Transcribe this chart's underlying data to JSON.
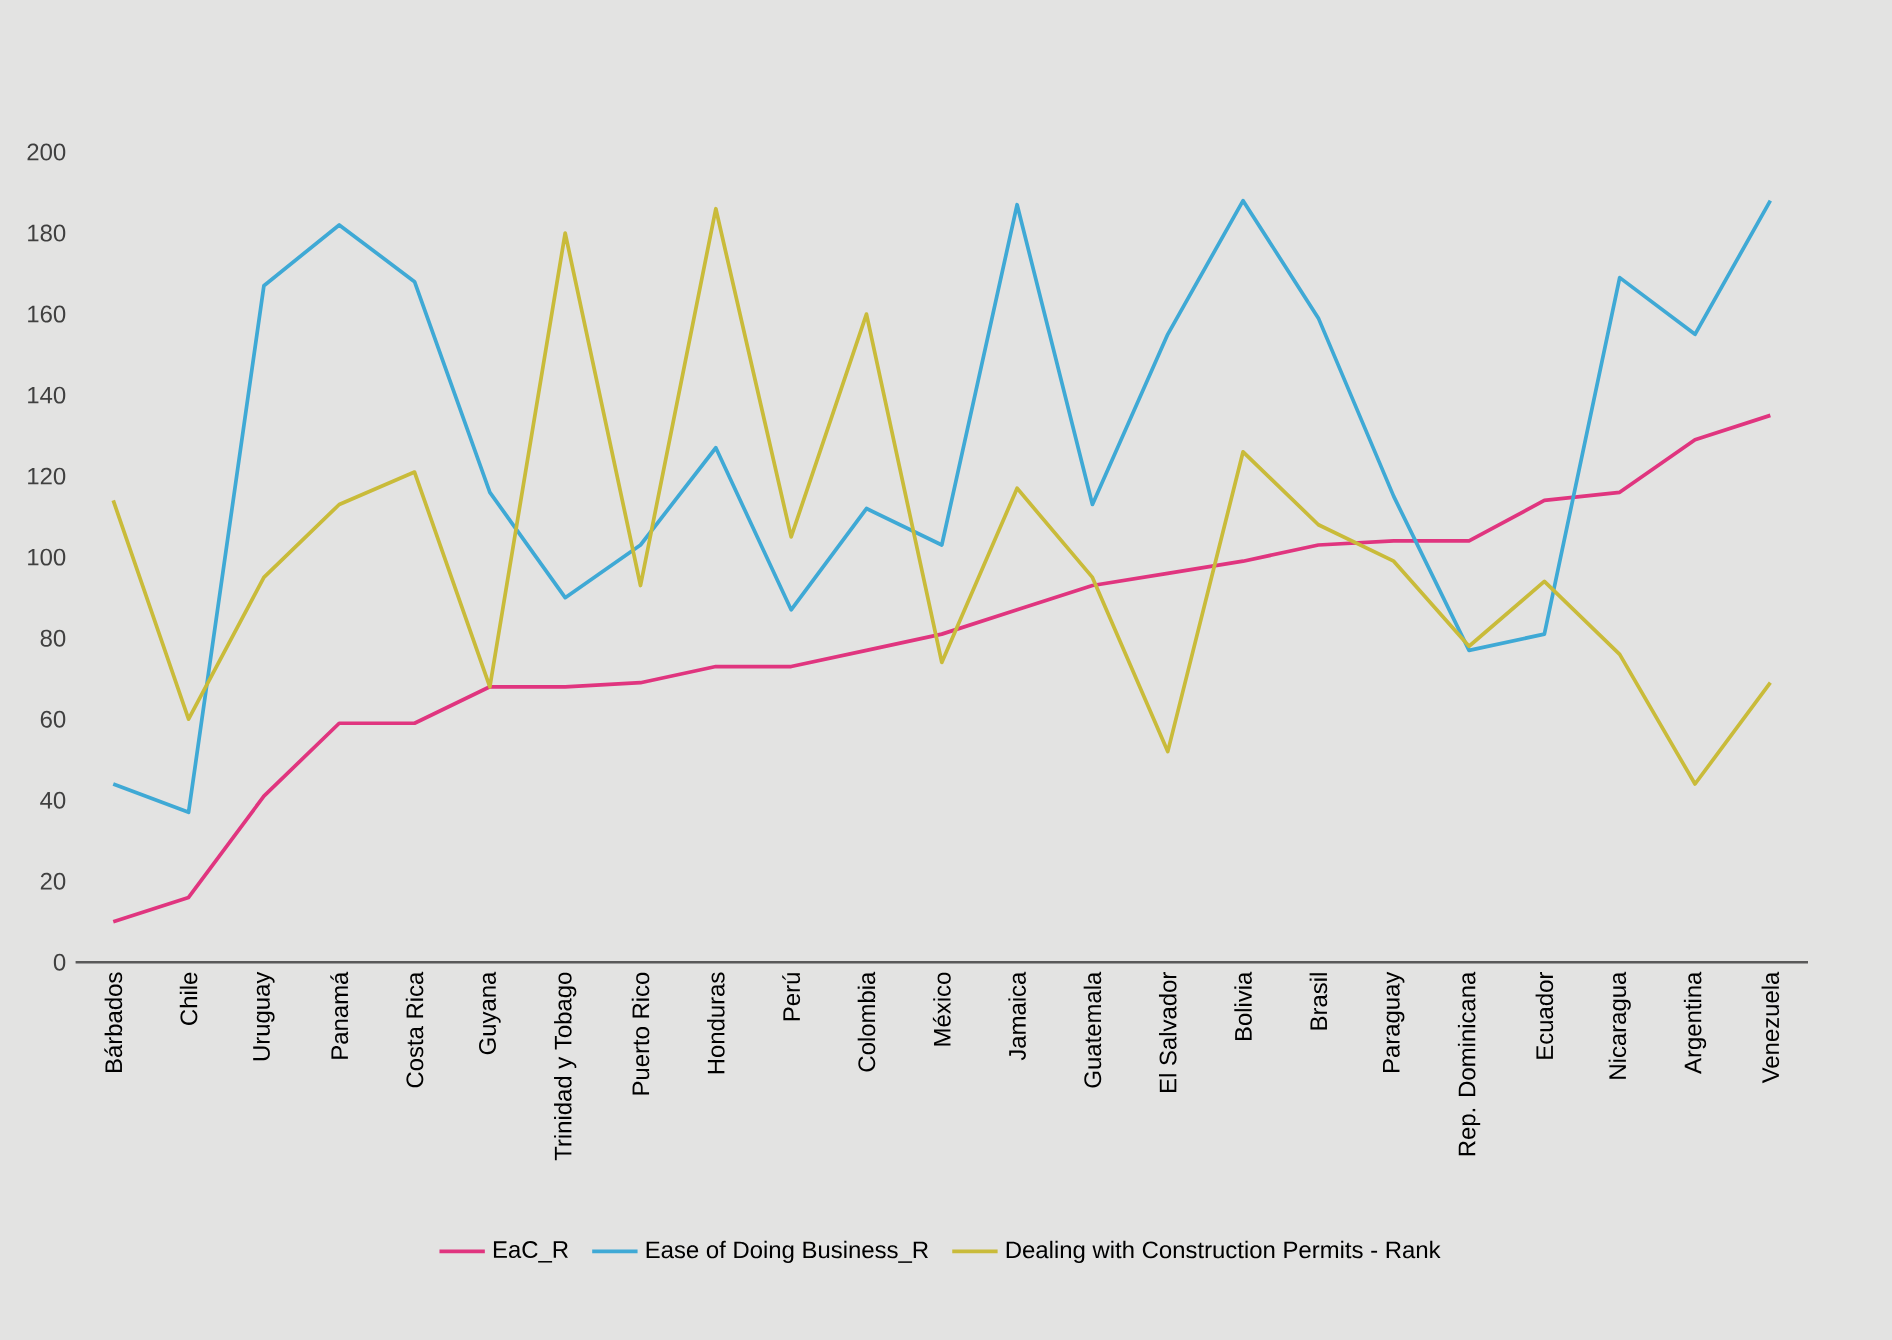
{
  "chart_data": {
    "type": "line",
    "categories": [
      "Bárbados",
      "Chile",
      "Uruguay",
      "Panamá",
      "Costa Rica",
      "Guyana",
      "Trinidad y Tobago",
      "Puerto Rico",
      "Honduras",
      "Perú",
      "Colombia",
      "México",
      "Jamaica",
      "Guatemala",
      "El Salvador",
      "Bolivia",
      "Brasil",
      "Paraguay",
      "Rep. Dominicana",
      "Ecuador",
      "Nicaragua",
      "Argentina",
      "Venezuela"
    ],
    "series": [
      {
        "name": "EaC_R",
        "color": "#e0357f",
        "values": [
          10,
          16,
          41,
          59,
          59,
          68,
          68,
          69,
          73,
          73,
          77,
          81,
          87,
          93,
          96,
          99,
          103,
          104,
          104,
          114,
          116,
          129,
          135
        ]
      },
      {
        "name": "Ease of Doing Business_R",
        "color": "#3fa9d5",
        "values": [
          44,
          37,
          167,
          182,
          168,
          116,
          90,
          103,
          127,
          87,
          112,
          103,
          187,
          113,
          155,
          188,
          159,
          115,
          77,
          81,
          169,
          155,
          188
        ]
      },
      {
        "name": "Dealing with Construction Permits - Rank",
        "color": "#c9bb3a",
        "values": [
          114,
          60,
          95,
          113,
          121,
          68,
          180,
          93,
          186,
          105,
          160,
          74,
          117,
          95,
          52,
          126,
          108,
          99,
          78,
          94,
          76,
          44,
          69
        ]
      }
    ],
    "ylim": [
      0,
      200
    ],
    "yticks": [
      0,
      20,
      40,
      60,
      80,
      100,
      120,
      140,
      160,
      180,
      200
    ],
    "grid": false,
    "legend": "bottom",
    "marker": "none",
    "line_style": "solid"
  }
}
